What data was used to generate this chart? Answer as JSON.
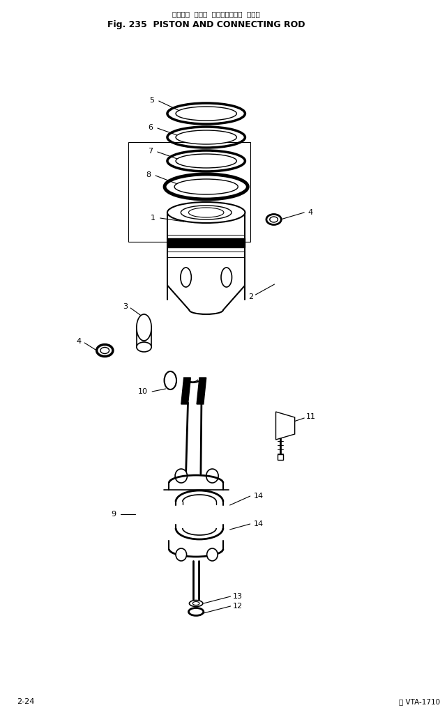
{
  "title_jp": "ピストン  および  コネクティング  ロッド",
  "title_en": "Fig. 235  PISTON AND CONNECTING ROD",
  "footer_left": "2-24",
  "footer_right": "ⓘ VTA-1710",
  "bg_color": "#ffffff",
  "line_color": "#000000",
  "fig_width": 6.41,
  "fig_height": 10.19,
  "dpi": 100
}
